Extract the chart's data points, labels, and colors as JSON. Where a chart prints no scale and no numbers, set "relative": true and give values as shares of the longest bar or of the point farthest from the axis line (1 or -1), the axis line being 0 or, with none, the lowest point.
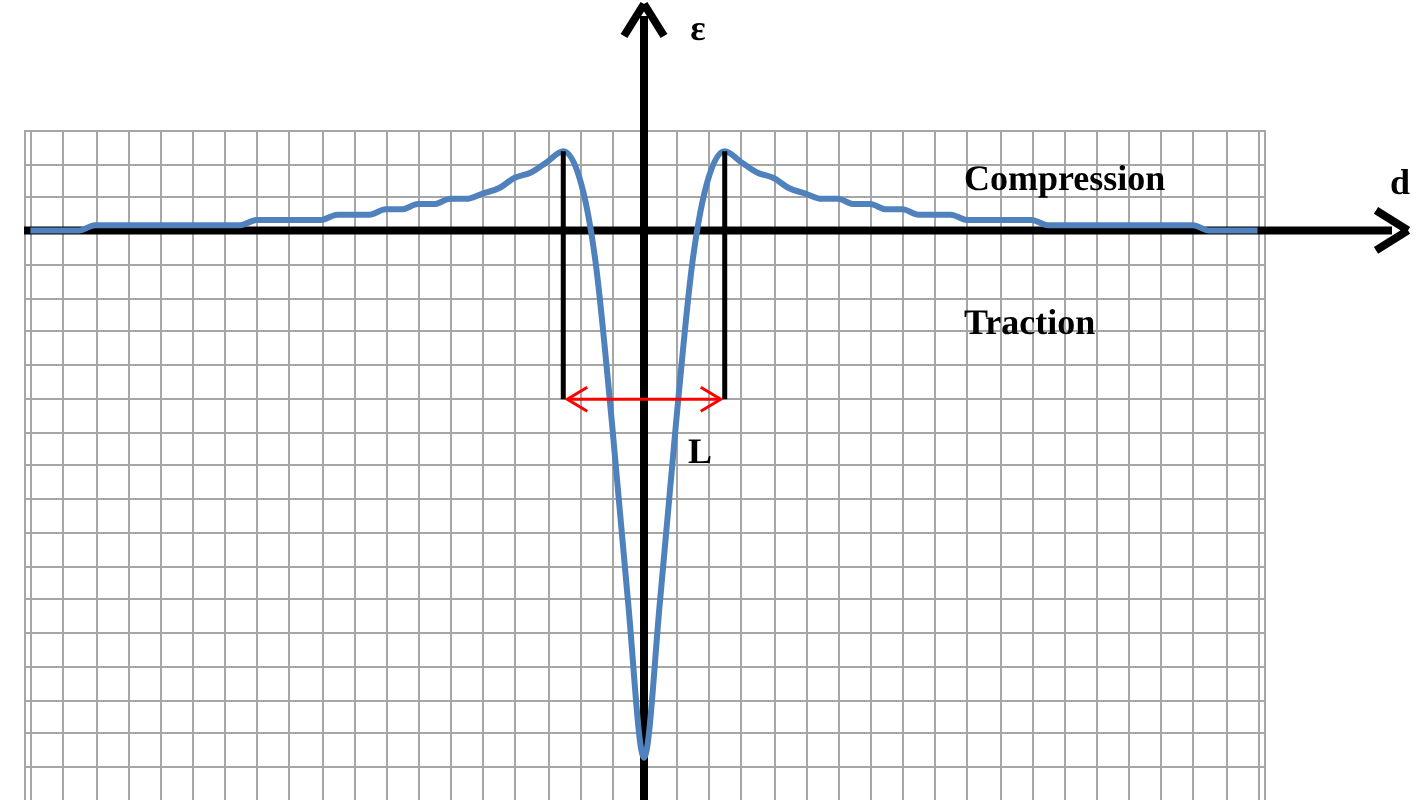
{
  "chart_data": {
    "type": "line",
    "relative": true,
    "grid": true,
    "xlabel": "d",
    "ylabel": "ε",
    "annotations": [
      "Compression",
      "Traction",
      "L"
    ],
    "categories": [
      null,
      null,
      null,
      null,
      null,
      null,
      null,
      null,
      null,
      null,
      null,
      null,
      null,
      null,
      null,
      null,
      null,
      null,
      null,
      null,
      null,
      null,
      null,
      null,
      null,
      null,
      null,
      null,
      null,
      null,
      null,
      null,
      null,
      null,
      null,
      null,
      null,
      null,
      null,
      null,
      null,
      null,
      null,
      null,
      null,
      null,
      null,
      null,
      null,
      null,
      null,
      null,
      null,
      null,
      null,
      null,
      null,
      null,
      null,
      null,
      null,
      null,
      null,
      null,
      null,
      null,
      null,
      null,
      null,
      null,
      null,
      null,
      null,
      null,
      null,
      null,
      null
    ],
    "series": [
      {
        "color": "#4f81bd",
        "values": [
          0,
          0,
          0,
          0,
          0.01,
          0.01,
          0.01,
          0.01,
          0.01,
          0.01,
          0.01,
          0.01,
          0.01,
          0.01,
          0.02,
          0.02,
          0.02,
          0.02,
          0.02,
          0.03,
          0.03,
          0.03,
          0.04,
          0.04,
          0.05,
          0.05,
          0.06,
          0.06,
          0.07,
          0.08,
          0.1,
          0.11,
          0.13,
          0.15,
          0.1,
          -0.06,
          -0.36,
          -0.7,
          -1,
          -0.7,
          -0.36,
          -0.06,
          0.1,
          0.15,
          0.13,
          0.11,
          0.1,
          0.08,
          0.07,
          0.06,
          0.06,
          0.05,
          0.05,
          0.04,
          0.04,
          0.03,
          0.03,
          0.03,
          0.02,
          0.02,
          0.02,
          0.02,
          0.02,
          0.01,
          0.01,
          0.01,
          0.01,
          0.01,
          0.01,
          0.01,
          0.01,
          0.01,
          0.01,
          0,
          0,
          0,
          0
        ]
      }
    ]
  }
}
